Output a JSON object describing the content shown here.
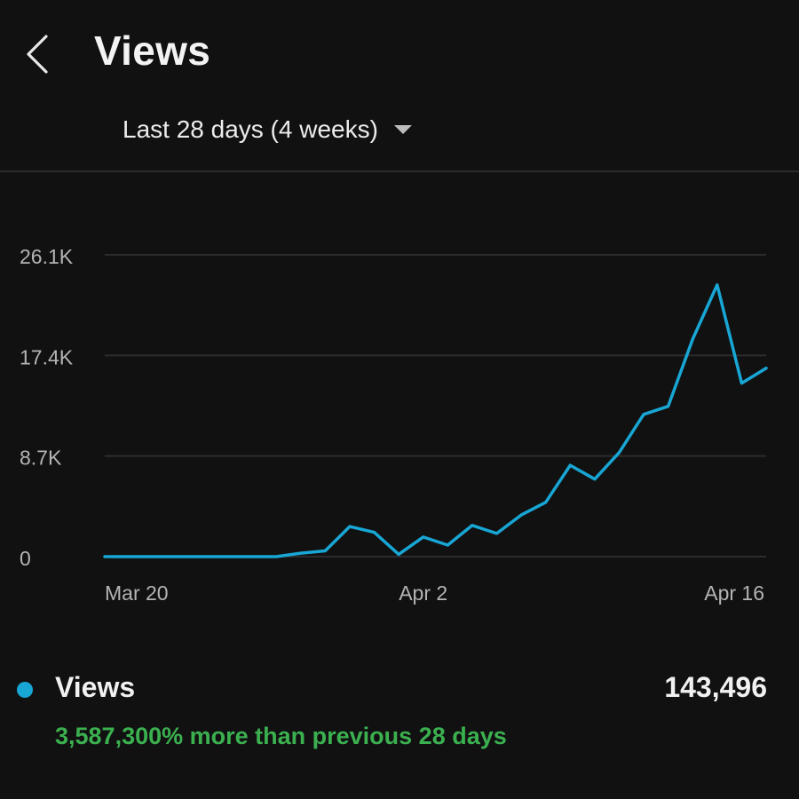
{
  "header": {
    "title": "Views",
    "back_icon": "chevron-left-icon"
  },
  "period": {
    "label": "Last 28 days (4 weeks)",
    "dropdown_icon": "caret-down-icon"
  },
  "colors": {
    "background": "#111112",
    "line": "#18a6d4",
    "gridline": "#2c2c2e",
    "axis_text": "#b4b4b4",
    "positive": "#3bb04f"
  },
  "chart_data": {
    "type": "line",
    "x": [
      "Mar 20",
      "Mar 21",
      "Mar 22",
      "Mar 23",
      "Mar 24",
      "Mar 25",
      "Mar 26",
      "Mar 27",
      "Mar 28",
      "Mar 29",
      "Mar 30",
      "Mar 31",
      "Apr 1",
      "Apr 2",
      "Apr 3",
      "Apr 4",
      "Apr 5",
      "Apr 6",
      "Apr 7",
      "Apr 8",
      "Apr 9",
      "Apr 10",
      "Apr 11",
      "Apr 12",
      "Apr 13",
      "Apr 14",
      "Apr 15",
      "Apr 16"
    ],
    "series": [
      {
        "name": "Views",
        "values": [
          0,
          0,
          0,
          0,
          0,
          0,
          0,
          0,
          300,
          500,
          2600,
          2100,
          200,
          1700,
          1000,
          2700,
          2000,
          3600,
          4700,
          7900,
          6700,
          9000,
          12300,
          13000,
          18800,
          23500,
          15000,
          16300
        ]
      }
    ],
    "x_tick_labels": [
      "Mar 20",
      "Apr 2",
      "Apr 16"
    ],
    "y_tick_labels": [
      "0",
      "8.7K",
      "17.4K",
      "26.1K"
    ],
    "y_ticks": [
      0,
      8700,
      17400,
      26100
    ],
    "ylim": [
      0,
      26100
    ],
    "grid": true,
    "title": "",
    "xlabel": "",
    "ylabel": ""
  },
  "summary": {
    "dot_color": "#18a6d4",
    "label": "Views",
    "total": "143,496",
    "comparison": "3,587,300% more than previous 28 days"
  }
}
